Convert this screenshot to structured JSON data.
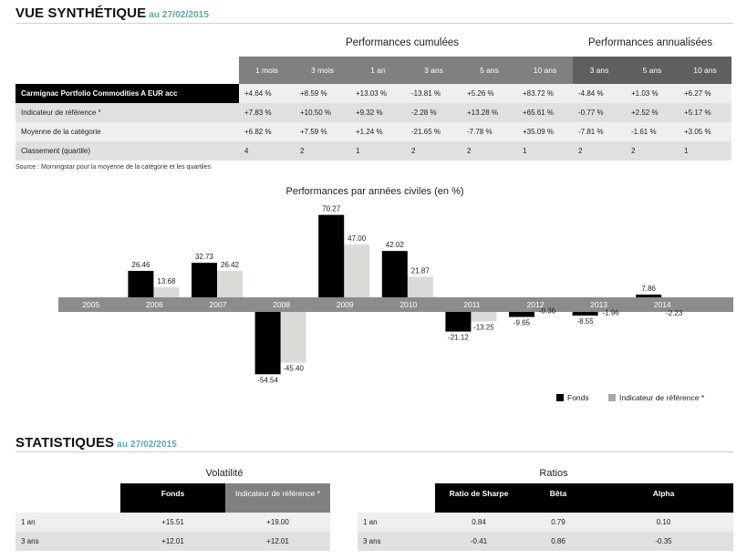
{
  "synthese": {
    "title": "VUE SYNTHÉTIQUE",
    "date": "au 27/02/2015",
    "group_cumul": "Performances cumulées",
    "group_annual": "Performances annualisées",
    "columns": [
      "1 mois",
      "3 mois",
      "1 an",
      "3 ans",
      "5 ans",
      "10 ans",
      "3 ans",
      "5 ans",
      "10 ans"
    ],
    "rows": [
      {
        "label": "Carmignac Portfolio Commodities A EUR acc",
        "values": [
          "+4.64 %",
          "+8.59 %",
          "+13.03 %",
          "-13.81 %",
          "+5.26 %",
          "+83.72 %",
          "-4.84 %",
          "+1.03 %",
          "+6.27 %"
        ]
      },
      {
        "label": "Indicateur de référence *",
        "values": [
          "+7.83 %",
          "+10.50 %",
          "+9.32 %",
          "-2.28 %",
          "+13.28 %",
          "+65.61 %",
          "-0.77 %",
          "+2.52 %",
          "+5.17 %"
        ]
      },
      {
        "label": "Moyenne de la catégorie",
        "values": [
          "+6.82 %",
          "+7.59 %",
          "+1.24 %",
          "-21.65 %",
          "-7.78 %",
          "+35.09 %",
          "-7.81 %",
          "-1.61 %",
          "+3.05 %"
        ]
      },
      {
        "label": "Classement (quartile)",
        "values": [
          "4",
          "2",
          "1",
          "2",
          "2",
          "1",
          "2",
          "2",
          "1"
        ]
      }
    ],
    "source": "Source : Morningstar pour la moyenne de la catégorie et les quartiles"
  },
  "chart_data": {
    "type": "bar",
    "title": "Performances par années civiles (en %)",
    "categories": [
      "2005",
      "2006",
      "2007",
      "2008",
      "2009",
      "2010",
      "2011",
      "2012",
      "2013",
      "2014"
    ],
    "series": [
      {
        "name": "Fonds",
        "color": "#000000",
        "values": [
          null,
          26.46,
          32.73,
          -54.54,
          70.27,
          42.02,
          -21.12,
          -9.65,
          -8.55,
          7.86
        ]
      },
      {
        "name": "Indicateur de référence *",
        "color": "#dcdad6",
        "values": [
          null,
          13.68,
          26.42,
          -45.4,
          47.0,
          21.87,
          -13.25,
          -0.36,
          -1.96,
          -2.23
        ]
      }
    ],
    "labels": [
      [
        "",
        "26.46",
        "32.73",
        "-54.54",
        "70.27",
        "42.02",
        "-21.12",
        "-9.65",
        "-8.55",
        "7.86"
      ],
      [
        "",
        "13.68",
        "26.42",
        "-45.40",
        "47.00",
        "21.87",
        "-13.25",
        "-0.36",
        "-1.96",
        "-2.23"
      ]
    ],
    "legend": [
      "Fonds",
      "Indicateur de référence *"
    ]
  },
  "statistiques": {
    "title": "STATISTIQUES",
    "date": "au 27/02/2015",
    "volatilite": {
      "title": "Volatilité",
      "columns": [
        "Fonds",
        "Indicateur de référence *"
      ],
      "rows": [
        {
          "label": "1 an",
          "values": [
            "+15.51",
            "+19.00"
          ]
        },
        {
          "label": "3 ans",
          "values": [
            "+12.01",
            "+12.01"
          ]
        }
      ]
    },
    "ratios": {
      "title": "Ratios",
      "columns": [
        "Ratio de Sharpe",
        "Bêta",
        "Alpha"
      ],
      "rows": [
        {
          "label": "1 an",
          "values": [
            "0.84",
            "0.79",
            "0.10"
          ]
        },
        {
          "label": "3 ans",
          "values": [
            "-0.41",
            "0.86",
            "-0.35"
          ]
        }
      ]
    }
  }
}
